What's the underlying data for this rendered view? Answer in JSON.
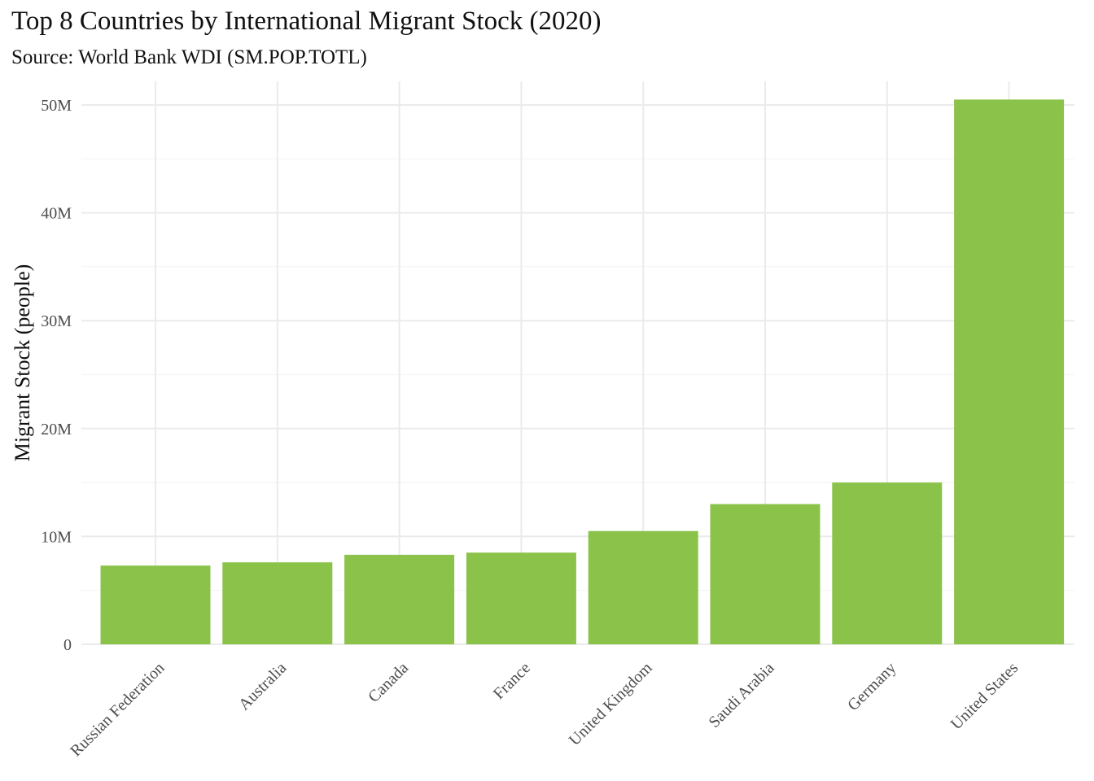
{
  "title": "Top 8 Countries by International Migrant Stock (2020)",
  "subtitle": "Source: World Bank WDI (SM.POP.TOTL)",
  "colors": {
    "bar": "#8bc34a",
    "grid": "#ebebeb"
  },
  "chart_data": {
    "type": "bar",
    "title": "Top 8 Countries by International Migrant Stock (2020)",
    "subtitle": "Source: World Bank WDI (SM.POP.TOTL)",
    "xlabel": "",
    "ylabel": "Migrant Stock (people)",
    "categories": [
      "Russian Federation",
      "Australia",
      "Canada",
      "France",
      "United Kingdom",
      "Saudi Arabia",
      "Germany",
      "United States"
    ],
    "values": [
      7300000,
      7600000,
      8300000,
      8500000,
      10500000,
      13000000,
      15000000,
      50500000
    ],
    "yticks": [
      0,
      10000000,
      20000000,
      30000000,
      40000000,
      50000000
    ],
    "ytick_labels": [
      "0",
      "10M",
      "20M",
      "30M",
      "40M",
      "50M"
    ],
    "ylim": [
      0,
      52000000
    ],
    "grid": true,
    "legend": "none"
  }
}
